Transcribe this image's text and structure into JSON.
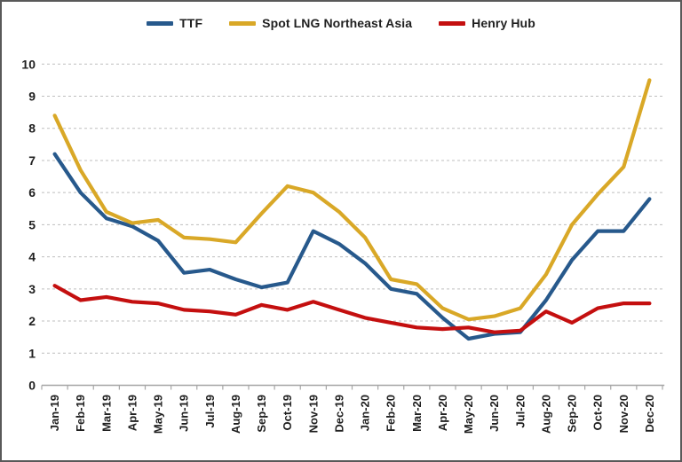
{
  "chart_data": {
    "type": "line",
    "title": "",
    "x_labels": [
      "Jan-19",
      "Feb-19",
      "Mar-19",
      "Apr-19",
      "May-19",
      "Jun-19",
      "Jul-19",
      "Aug-19",
      "Sep-19",
      "Oct-19",
      "Nov-19",
      "Dec-19",
      "Jan-20",
      "Feb-20",
      "Mar-20",
      "Apr-20",
      "May-20",
      "Jun-20",
      "Jul-20",
      "Aug-20",
      "Sep-20",
      "Oct-20",
      "Nov-20",
      "Dec-20"
    ],
    "y_axis": {
      "min": 0,
      "max": 10,
      "step": 1,
      "tick_labels": [
        "0",
        "1",
        "2",
        "3",
        "4",
        "5",
        "6",
        "7",
        "8",
        "9",
        "10"
      ]
    },
    "grid": "horizontal-dashed",
    "legend_position": "top-center",
    "series": [
      {
        "name": "TTF",
        "color": "#27598C",
        "values": [
          7.2,
          6.0,
          5.2,
          4.95,
          4.5,
          3.5,
          3.6,
          3.3,
          3.05,
          3.2,
          4.8,
          4.4,
          3.8,
          3.0,
          2.85,
          2.1,
          1.45,
          1.6,
          1.65,
          2.65,
          3.9,
          4.8,
          4.8,
          5.8
        ]
      },
      {
        "name": "Spot LNG Northeast Asia",
        "color": "#D9A827",
        "values": [
          8.4,
          6.7,
          5.4,
          5.05,
          5.15,
          4.6,
          4.55,
          4.45,
          5.35,
          6.2,
          6.0,
          5.4,
          4.6,
          3.3,
          3.15,
          2.4,
          2.05,
          2.15,
          2.4,
          3.45,
          5.0,
          5.95,
          6.8,
          9.5
        ]
      },
      {
        "name": "Henry Hub",
        "color": "#C40F0F",
        "values": [
          3.1,
          2.65,
          2.75,
          2.6,
          2.55,
          2.35,
          2.3,
          2.2,
          2.5,
          2.35,
          2.6,
          2.35,
          2.1,
          1.95,
          1.8,
          1.75,
          1.8,
          1.65,
          1.7,
          2.3,
          1.95,
          2.4,
          2.55,
          2.55
        ]
      }
    ],
    "style": {
      "gridline_color": "#BFBFBF",
      "axis_color": "#A6A6A6",
      "text_color": "#1F1F1F",
      "border_color": "#595959",
      "background": "#FFFFFF"
    }
  }
}
